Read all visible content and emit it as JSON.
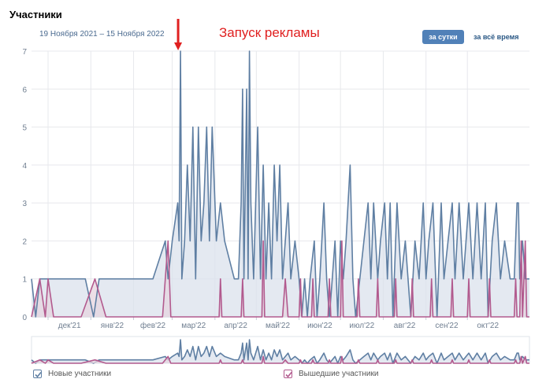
{
  "header": {
    "title": "Участники",
    "date_range": "19 Ноября 2021 – 15 Ноября 2022",
    "annotation": "Запуск рекламы",
    "buttons": {
      "per_day": "за сутки",
      "all_time": "за всё время"
    }
  },
  "legend": {
    "new_members": "Новые участники",
    "left_members": "Вышедшие участники"
  },
  "colors": {
    "new_line": "#5f7fa3",
    "new_fill": "#dbe2ec",
    "left_line": "#b25a8e",
    "left_fill": "#e6d4df",
    "accent_button": "#5181b8",
    "annotation": "#e02020"
  },
  "chart_data": {
    "type": "area",
    "title": "",
    "xlabel": "",
    "ylabel": "",
    "ylim": [
      0,
      7
    ],
    "y_ticks": [
      0,
      1,
      2,
      3,
      4,
      5,
      6,
      7
    ],
    "x_tick_labels": [
      "дек'21",
      "янв'22",
      "фев'22",
      "мар'22",
      "апр'22",
      "май'22",
      "июн'22",
      "июл'22",
      "авг'22",
      "сен'22",
      "окт'22"
    ],
    "x_ticks_dates": [
      "2021-12-01",
      "2022-01-01",
      "2022-02-01",
      "2022-03-01",
      "2022-04-01",
      "2022-05-01",
      "2022-06-01",
      "2022-07-01",
      "2022-08-01",
      "2022-09-01",
      "2022-10-01"
    ],
    "x_range": [
      "2021-11-19",
      "2022-11-15"
    ],
    "grid": true,
    "annotation": {
      "text": "Запуск рекламы",
      "date": "2022-03-07"
    },
    "series": [
      {
        "name": "Новые участники",
        "points": [
          [
            "2021-11-19",
            1
          ],
          [
            "2021-11-22",
            0
          ],
          [
            "2021-11-25",
            1
          ],
          [
            "2021-12-01",
            1
          ],
          [
            "2021-12-28",
            1
          ],
          [
            "2022-01-03",
            0
          ],
          [
            "2022-01-07",
            1
          ],
          [
            "2022-01-31",
            1
          ],
          [
            "2022-02-15",
            1
          ],
          [
            "2022-02-24",
            2
          ],
          [
            "2022-02-26",
            1
          ],
          [
            "2022-03-01",
            2
          ],
          [
            "2022-03-05",
            3
          ],
          [
            "2022-03-06",
            2
          ],
          [
            "2022-03-07",
            7
          ],
          [
            "2022-03-08",
            1
          ],
          [
            "2022-03-10",
            2
          ],
          [
            "2022-03-12",
            4
          ],
          [
            "2022-03-14",
            2
          ],
          [
            "2022-03-16",
            5
          ],
          [
            "2022-03-18",
            1
          ],
          [
            "2022-03-20",
            5
          ],
          [
            "2022-03-22",
            2
          ],
          [
            "2022-03-24",
            3
          ],
          [
            "2022-03-26",
            5
          ],
          [
            "2022-03-28",
            2
          ],
          [
            "2022-03-30",
            5
          ],
          [
            "2022-04-02",
            2
          ],
          [
            "2022-04-05",
            3
          ],
          [
            "2022-04-08",
            2
          ],
          [
            "2022-04-15",
            1
          ],
          [
            "2022-04-18",
            1
          ],
          [
            "2022-04-20",
            3
          ],
          [
            "2022-04-21",
            6
          ],
          [
            "2022-04-22",
            1
          ],
          [
            "2022-04-24",
            6
          ],
          [
            "2022-04-25",
            1
          ],
          [
            "2022-04-26",
            7
          ],
          [
            "2022-04-27",
            3
          ],
          [
            "2022-04-29",
            1
          ],
          [
            "2022-05-02",
            5
          ],
          [
            "2022-05-04",
            1
          ],
          [
            "2022-05-06",
            4
          ],
          [
            "2022-05-08",
            1
          ],
          [
            "2022-05-10",
            3
          ],
          [
            "2022-05-12",
            1
          ],
          [
            "2022-05-14",
            4
          ],
          [
            "2022-05-16",
            2
          ],
          [
            "2022-05-18",
            4
          ],
          [
            "2022-05-20",
            1
          ],
          [
            "2022-05-24",
            3
          ],
          [
            "2022-05-26",
            1
          ],
          [
            "2022-05-29",
            2
          ],
          [
            "2022-06-01",
            1
          ],
          [
            "2022-06-03",
            0
          ],
          [
            "2022-06-05",
            1
          ],
          [
            "2022-06-07",
            0
          ],
          [
            "2022-06-09",
            1
          ],
          [
            "2022-06-12",
            2
          ],
          [
            "2022-06-14",
            0
          ],
          [
            "2022-06-16",
            1
          ],
          [
            "2022-06-19",
            3
          ],
          [
            "2022-06-21",
            1
          ],
          [
            "2022-06-23",
            0
          ],
          [
            "2022-06-25",
            1
          ],
          [
            "2022-06-27",
            2
          ],
          [
            "2022-06-29",
            0
          ],
          [
            "2022-07-01",
            2
          ],
          [
            "2022-07-03",
            1
          ],
          [
            "2022-07-05",
            2
          ],
          [
            "2022-07-08",
            4
          ],
          [
            "2022-07-10",
            1
          ],
          [
            "2022-07-12",
            0
          ],
          [
            "2022-07-15",
            1
          ],
          [
            "2022-07-18",
            2
          ],
          [
            "2022-07-21",
            3
          ],
          [
            "2022-07-23",
            1
          ],
          [
            "2022-07-25",
            3
          ],
          [
            "2022-07-28",
            1
          ],
          [
            "2022-07-30",
            2
          ],
          [
            "2022-08-02",
            3
          ],
          [
            "2022-08-04",
            1
          ],
          [
            "2022-08-06",
            3
          ],
          [
            "2022-08-08",
            0
          ],
          [
            "2022-08-11",
            3
          ],
          [
            "2022-08-14",
            1
          ],
          [
            "2022-08-17",
            2
          ],
          [
            "2022-08-19",
            1
          ],
          [
            "2022-08-21",
            0
          ],
          [
            "2022-08-24",
            2
          ],
          [
            "2022-08-27",
            1
          ],
          [
            "2022-08-30",
            3
          ],
          [
            "2022-09-01",
            1
          ],
          [
            "2022-09-03",
            2
          ],
          [
            "2022-09-06",
            3
          ],
          [
            "2022-09-09",
            0
          ],
          [
            "2022-09-12",
            3
          ],
          [
            "2022-09-14",
            1
          ],
          [
            "2022-09-17",
            2
          ],
          [
            "2022-09-20",
            3
          ],
          [
            "2022-09-22",
            1
          ],
          [
            "2022-09-25",
            3
          ],
          [
            "2022-09-28",
            1
          ],
          [
            "2022-09-30",
            2
          ],
          [
            "2022-10-02",
            3
          ],
          [
            "2022-10-05",
            1
          ],
          [
            "2022-10-08",
            3
          ],
          [
            "2022-10-11",
            1
          ],
          [
            "2022-10-14",
            3
          ],
          [
            "2022-10-16",
            0
          ],
          [
            "2022-10-19",
            2
          ],
          [
            "2022-10-22",
            3
          ],
          [
            "2022-10-25",
            1
          ],
          [
            "2022-10-28",
            2
          ],
          [
            "2022-11-01",
            1
          ],
          [
            "2022-11-04",
            1
          ],
          [
            "2022-11-06",
            3
          ],
          [
            "2022-11-07",
            3
          ],
          [
            "2022-11-08",
            1
          ],
          [
            "2022-11-10",
            2
          ],
          [
            "2022-11-12",
            1
          ],
          [
            "2022-11-15",
            1
          ]
        ]
      },
      {
        "name": "Вышедшие участники",
        "points": [
          [
            "2021-11-19",
            0
          ],
          [
            "2021-11-25",
            1
          ],
          [
            "2021-11-29",
            0
          ],
          [
            "2021-12-01",
            1
          ],
          [
            "2021-12-05",
            0
          ],
          [
            "2021-12-25",
            0
          ],
          [
            "2022-01-04",
            1
          ],
          [
            "2022-01-12",
            0
          ],
          [
            "2022-02-22",
            0
          ],
          [
            "2022-02-26",
            2
          ],
          [
            "2022-02-28",
            0
          ],
          [
            "2022-04-04",
            0
          ],
          [
            "2022-04-05",
            1
          ],
          [
            "2022-04-06",
            0
          ],
          [
            "2022-04-20",
            0
          ],
          [
            "2022-04-21",
            1
          ],
          [
            "2022-04-22",
            0
          ],
          [
            "2022-05-05",
            0
          ],
          [
            "2022-05-06",
            2
          ],
          [
            "2022-05-07",
            0
          ],
          [
            "2022-05-20",
            0
          ],
          [
            "2022-05-22",
            1
          ],
          [
            "2022-05-24",
            0
          ],
          [
            "2022-06-01",
            0
          ],
          [
            "2022-06-02",
            1
          ],
          [
            "2022-06-03",
            0
          ],
          [
            "2022-06-10",
            0
          ],
          [
            "2022-06-11",
            1
          ],
          [
            "2022-06-12",
            0
          ],
          [
            "2022-06-22",
            0
          ],
          [
            "2022-06-23",
            1
          ],
          [
            "2022-06-24",
            0
          ],
          [
            "2022-07-01",
            0
          ],
          [
            "2022-07-02",
            2
          ],
          [
            "2022-07-03",
            0
          ],
          [
            "2022-07-13",
            0
          ],
          [
            "2022-07-14",
            1
          ],
          [
            "2022-07-15",
            0
          ],
          [
            "2022-07-27",
            0
          ],
          [
            "2022-07-28",
            1
          ],
          [
            "2022-07-29",
            0
          ],
          [
            "2022-08-09",
            0
          ],
          [
            "2022-08-10",
            1
          ],
          [
            "2022-08-11",
            0
          ],
          [
            "2022-08-21",
            0
          ],
          [
            "2022-08-22",
            1
          ],
          [
            "2022-08-23",
            0
          ],
          [
            "2022-09-04",
            0
          ],
          [
            "2022-09-05",
            1
          ],
          [
            "2022-09-06",
            0
          ],
          [
            "2022-09-19",
            0
          ],
          [
            "2022-09-20",
            1
          ],
          [
            "2022-09-21",
            0
          ],
          [
            "2022-10-01",
            0
          ],
          [
            "2022-10-02",
            1
          ],
          [
            "2022-10-03",
            0
          ],
          [
            "2022-10-16",
            0
          ],
          [
            "2022-10-17",
            1
          ],
          [
            "2022-10-18",
            0
          ],
          [
            "2022-11-04",
            0
          ],
          [
            "2022-11-05",
            1
          ],
          [
            "2022-11-06",
            0
          ],
          [
            "2022-11-08",
            0
          ],
          [
            "2022-11-09",
            2
          ],
          [
            "2022-11-10",
            0
          ],
          [
            "2022-11-12",
            2
          ],
          [
            "2022-11-13",
            0
          ],
          [
            "2022-11-15",
            0
          ]
        ]
      }
    ]
  }
}
